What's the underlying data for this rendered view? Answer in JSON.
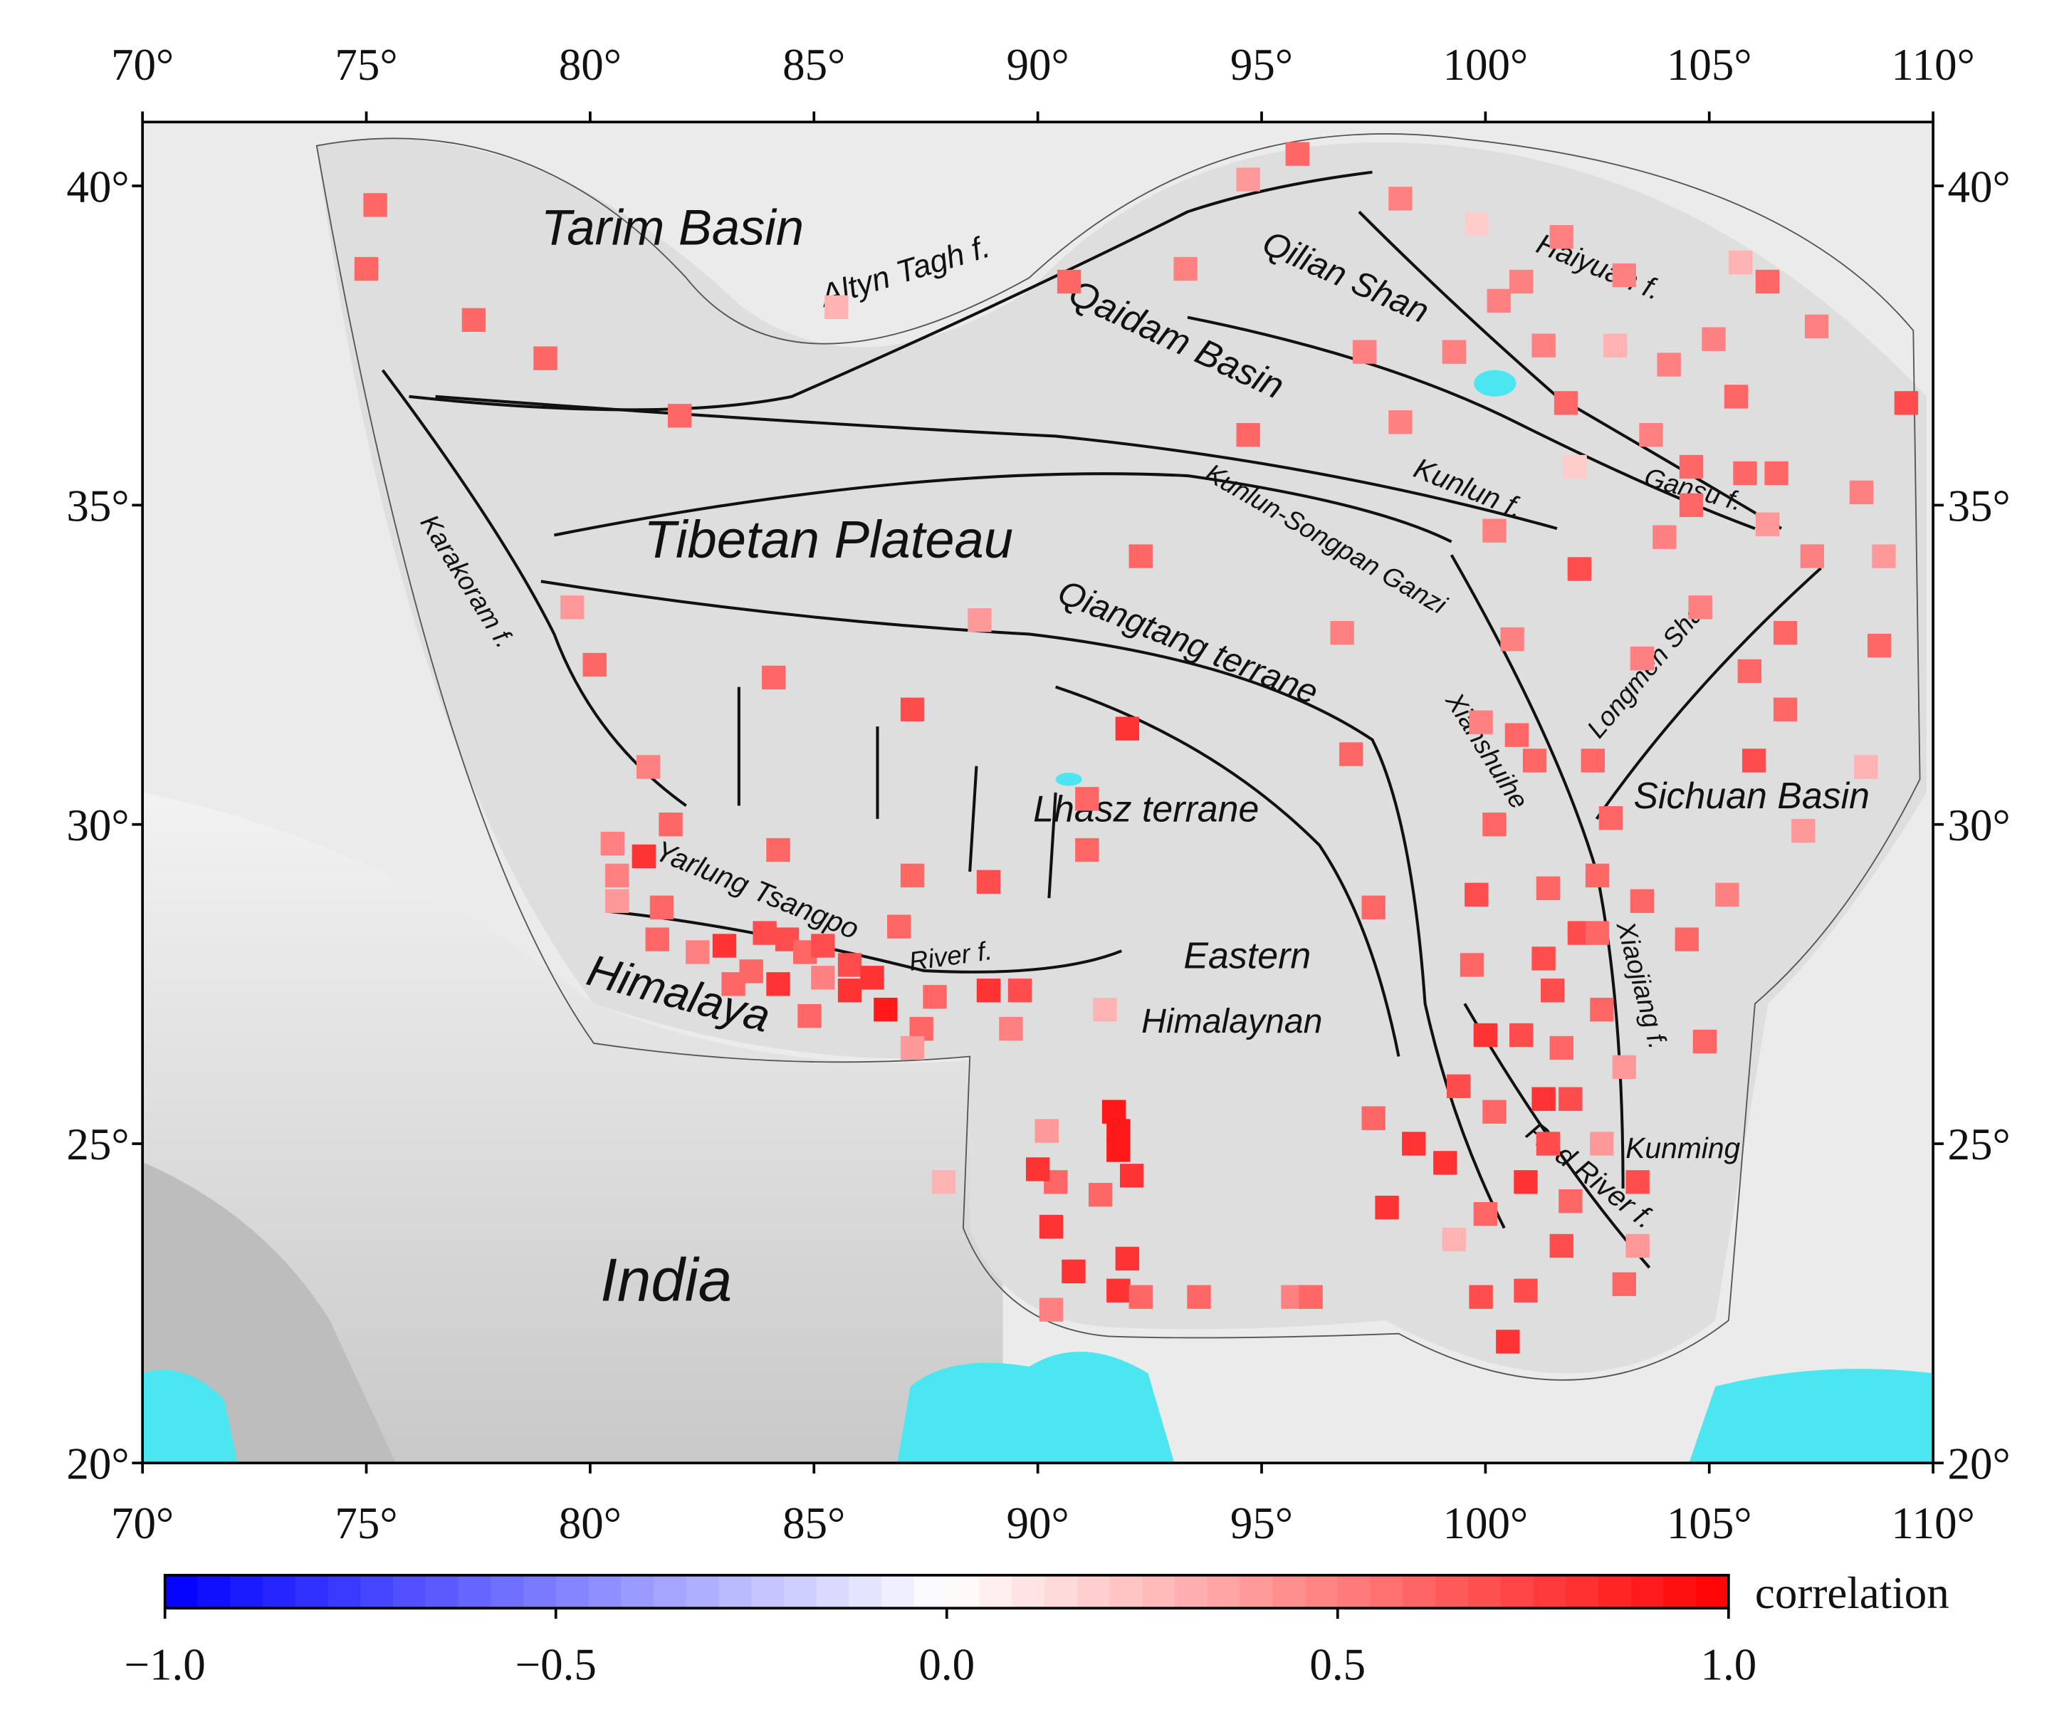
{
  "map": {
    "xlim": [
      70,
      110
    ],
    "ylim": [
      20,
      41
    ],
    "xticks": [
      {
        "value": 70,
        "label": "70°"
      },
      {
        "value": 75,
        "label": "75°"
      },
      {
        "value": 80,
        "label": "80°"
      },
      {
        "value": 85,
        "label": "85°"
      },
      {
        "value": 90,
        "label": "90°"
      },
      {
        "value": 95,
        "label": "95°"
      },
      {
        "value": 100,
        "label": "100°"
      },
      {
        "value": 105,
        "label": "105°"
      },
      {
        "value": 110,
        "label": "110°"
      }
    ],
    "yticks": [
      {
        "value": 20,
        "label": "20°"
      },
      {
        "value": 25,
        "label": "25°"
      },
      {
        "value": 30,
        "label": "30°"
      },
      {
        "value": 35,
        "label": "35°"
      },
      {
        "value": 40,
        "label": "40°"
      }
    ],
    "labels": [
      "Tarim Basin",
      "Altyn Tagh f.",
      "Qilian Shan",
      "Haiyuan f.",
      "Qaidam Basin",
      "Tibetan Plateau",
      "Kunlun f.",
      "Gansu f.",
      "Karakoram f.",
      "Kunlun-Songpan Ganzi",
      "Qiangtang terrane",
      "Xianshuihe",
      "Longmen Shan",
      "Sichuan Basin",
      "Lhasz terrane",
      "Yarlung Tsangpo",
      "River f.",
      "Eastern",
      "Himalaynan",
      "Himalaya",
      "Xiaojiang f.",
      "Kunming",
      "Red River f.",
      "India"
    ],
    "stations": [
      {
        "lon": 95.8,
        "lat": 40.5,
        "correlation": 0.6
      },
      {
        "lon": 94.7,
        "lat": 40.1,
        "correlation": 0.4
      },
      {
        "lon": 98.1,
        "lat": 39.8,
        "correlation": 0.5
      },
      {
        "lon": 99.8,
        "lat": 39.4,
        "correlation": 0.2
      },
      {
        "lon": 101.7,
        "lat": 39.2,
        "correlation": 0.5
      },
      {
        "lon": 103.1,
        "lat": 38.6,
        "correlation": 0.5
      },
      {
        "lon": 105.7,
        "lat": 38.8,
        "correlation": 0.3
      },
      {
        "lon": 106.3,
        "lat": 38.5,
        "correlation": 0.6
      },
      {
        "lon": 107.4,
        "lat": 37.8,
        "correlation": 0.5
      },
      {
        "lon": 100.8,
        "lat": 38.5,
        "correlation": 0.5
      },
      {
        "lon": 100.3,
        "lat": 38.2,
        "correlation": 0.5
      },
      {
        "lon": 99.3,
        "lat": 37.4,
        "correlation": 0.5
      },
      {
        "lon": 101.3,
        "lat": 37.5,
        "correlation": 0.5
      },
      {
        "lon": 102.9,
        "lat": 37.5,
        "correlation": 0.3
      },
      {
        "lon": 104.1,
        "lat": 37.2,
        "correlation": 0.5
      },
      {
        "lon": 105.1,
        "lat": 37.6,
        "correlation": 0.5
      },
      {
        "lon": 101.8,
        "lat": 36.6,
        "correlation": 0.6
      },
      {
        "lon": 103.7,
        "lat": 36.1,
        "correlation": 0.5
      },
      {
        "lon": 105.6,
        "lat": 36.7,
        "correlation": 0.6
      },
      {
        "lon": 109.4,
        "lat": 36.6,
        "correlation": 0.7
      },
      {
        "lon": 104.6,
        "lat": 35.6,
        "correlation": 0.6
      },
      {
        "lon": 105.8,
        "lat": 35.5,
        "correlation": 0.6
      },
      {
        "lon": 106.5,
        "lat": 35.5,
        "correlation": 0.6
      },
      {
        "lon": 102.0,
        "lat": 35.6,
        "correlation": 0.2
      },
      {
        "lon": 104.6,
        "lat": 35.0,
        "correlation": 0.6
      },
      {
        "lon": 108.4,
        "lat": 35.2,
        "correlation": 0.5
      },
      {
        "lon": 106.3,
        "lat": 34.7,
        "correlation": 0.4
      },
      {
        "lon": 104.0,
        "lat": 34.5,
        "correlation": 0.5
      },
      {
        "lon": 107.3,
        "lat": 34.2,
        "correlation": 0.5
      },
      {
        "lon": 108.9,
        "lat": 34.2,
        "correlation": 0.4
      },
      {
        "lon": 100.2,
        "lat": 34.6,
        "correlation": 0.5
      },
      {
        "lon": 102.1,
        "lat": 34.0,
        "correlation": 0.7
      },
      {
        "lon": 104.8,
        "lat": 33.4,
        "correlation": 0.5
      },
      {
        "lon": 100.6,
        "lat": 32.9,
        "correlation": 0.5
      },
      {
        "lon": 103.5,
        "lat": 32.6,
        "correlation": 0.5
      },
      {
        "lon": 106.7,
        "lat": 33.0,
        "correlation": 0.6
      },
      {
        "lon": 108.8,
        "lat": 32.8,
        "correlation": 0.6
      },
      {
        "lon": 105.9,
        "lat": 32.4,
        "correlation": 0.6
      },
      {
        "lon": 106.7,
        "lat": 31.8,
        "correlation": 0.6
      },
      {
        "lon": 106.0,
        "lat": 31.0,
        "correlation": 0.7
      },
      {
        "lon": 108.5,
        "lat": 30.9,
        "correlation": 0.3
      },
      {
        "lon": 107.1,
        "lat": 29.9,
        "correlation": 0.4
      },
      {
        "lon": 100.7,
        "lat": 31.4,
        "correlation": 0.6
      },
      {
        "lon": 101.1,
        "lat": 31.0,
        "correlation": 0.6
      },
      {
        "lon": 102.4,
        "lat": 31.0,
        "correlation": 0.6
      },
      {
        "lon": 102.8,
        "lat": 30.1,
        "correlation": 0.6
      },
      {
        "lon": 100.2,
        "lat": 30.0,
        "correlation": 0.6
      },
      {
        "lon": 99.9,
        "lat": 31.6,
        "correlation": 0.5
      },
      {
        "lon": 97.0,
        "lat": 31.1,
        "correlation": 0.6
      },
      {
        "lon": 96.8,
        "lat": 33.0,
        "correlation": 0.5
      },
      {
        "lon": 94.7,
        "lat": 36.1,
        "correlation": 0.6
      },
      {
        "lon": 98.1,
        "lat": 36.3,
        "correlation": 0.5
      },
      {
        "lon": 97.3,
        "lat": 37.4,
        "correlation": 0.5
      },
      {
        "lon": 93.3,
        "lat": 38.7,
        "correlation": 0.5
      },
      {
        "lon": 90.7,
        "lat": 38.5,
        "correlation": 0.6
      },
      {
        "lon": 85.5,
        "lat": 38.1,
        "correlation": 0.3
      },
      {
        "lon": 92.3,
        "lat": 34.2,
        "correlation": 0.6
      },
      {
        "lon": 88.7,
        "lat": 33.2,
        "correlation": 0.4
      },
      {
        "lon": 92.0,
        "lat": 31.5,
        "correlation": 0.8
      },
      {
        "lon": 87.2,
        "lat": 31.8,
        "correlation": 0.7
      },
      {
        "lon": 84.1,
        "lat": 32.3,
        "correlation": 0.6
      },
      {
        "lon": 91.1,
        "lat": 30.4,
        "correlation": 0.6
      },
      {
        "lon": 91.1,
        "lat": 29.6,
        "correlation": 0.6
      },
      {
        "lon": 88.9,
        "lat": 29.1,
        "correlation": 0.7
      },
      {
        "lon": 87.2,
        "lat": 29.2,
        "correlation": 0.6
      },
      {
        "lon": 84.2,
        "lat": 29.6,
        "correlation": 0.6
      },
      {
        "lon": 81.8,
        "lat": 30.0,
        "correlation": 0.6
      },
      {
        "lon": 81.3,
        "lat": 30.9,
        "correlation": 0.5
      },
      {
        "lon": 80.1,
        "lat": 32.5,
        "correlation": 0.6
      },
      {
        "lon": 79.6,
        "lat": 33.4,
        "correlation": 0.4
      },
      {
        "lon": 82.0,
        "lat": 36.4,
        "correlation": 0.6
      },
      {
        "lon": 79.0,
        "lat": 37.3,
        "correlation": 0.6
      },
      {
        "lon": 77.4,
        "lat": 37.9,
        "correlation": 0.6
      },
      {
        "lon": 75.0,
        "lat": 38.7,
        "correlation": 0.6
      },
      {
        "lon": 75.2,
        "lat": 39.7,
        "correlation": 0.6
      },
      {
        "lon": 80.5,
        "lat": 29.7,
        "correlation": 0.5
      },
      {
        "lon": 81.2,
        "lat": 29.5,
        "correlation": 0.8
      },
      {
        "lon": 80.6,
        "lat": 29.2,
        "correlation": 0.5
      },
      {
        "lon": 80.6,
        "lat": 28.8,
        "correlation": 0.4
      },
      {
        "lon": 81.6,
        "lat": 28.7,
        "correlation": 0.6
      },
      {
        "lon": 81.5,
        "lat": 28.2,
        "correlation": 0.6
      },
      {
        "lon": 82.4,
        "lat": 28.0,
        "correlation": 0.5
      },
      {
        "lon": 83.0,
        "lat": 28.1,
        "correlation": 0.8
      },
      {
        "lon": 83.9,
        "lat": 28.3,
        "correlation": 0.7
      },
      {
        "lon": 84.4,
        "lat": 28.2,
        "correlation": 0.7
      },
      {
        "lon": 84.8,
        "lat": 28.0,
        "correlation": 0.6
      },
      {
        "lon": 85.2,
        "lat": 28.1,
        "correlation": 0.7
      },
      {
        "lon": 83.6,
        "lat": 27.7,
        "correlation": 0.6
      },
      {
        "lon": 84.2,
        "lat": 27.5,
        "correlation": 0.8
      },
      {
        "lon": 85.2,
        "lat": 27.6,
        "correlation": 0.5
      },
      {
        "lon": 85.8,
        "lat": 27.8,
        "correlation": 0.7
      },
      {
        "lon": 86.3,
        "lat": 27.6,
        "correlation": 0.8
      },
      {
        "lon": 85.8,
        "lat": 27.4,
        "correlation": 0.8
      },
      {
        "lon": 86.6,
        "lat": 27.1,
        "correlation": 0.9
      },
      {
        "lon": 84.9,
        "lat": 27.0,
        "correlation": 0.6
      },
      {
        "lon": 86.9,
        "lat": 28.4,
        "correlation": 0.6
      },
      {
        "lon": 87.4,
        "lat": 26.8,
        "correlation": 0.6
      },
      {
        "lon": 87.7,
        "lat": 27.3,
        "correlation": 0.6
      },
      {
        "lon": 88.9,
        "lat": 27.4,
        "correlation": 0.8
      },
      {
        "lon": 89.6,
        "lat": 27.4,
        "correlation": 0.7
      },
      {
        "lon": 89.4,
        "lat": 26.8,
        "correlation": 0.5
      },
      {
        "lon": 87.2,
        "lat": 26.5,
        "correlation": 0.4
      },
      {
        "lon": 91.5,
        "lat": 27.1,
        "correlation": 0.3
      },
      {
        "lon": 83.2,
        "lat": 27.5,
        "correlation": 0.6
      },
      {
        "lon": 91.7,
        "lat": 25.5,
        "correlation": 0.9
      },
      {
        "lon": 91.8,
        "lat": 25.2,
        "correlation": 0.9
      },
      {
        "lon": 91.8,
        "lat": 24.9,
        "correlation": 0.9
      },
      {
        "lon": 92.1,
        "lat": 24.5,
        "correlation": 0.8
      },
      {
        "lon": 91.4,
        "lat": 24.2,
        "correlation": 0.6
      },
      {
        "lon": 90.4,
        "lat": 24.4,
        "correlation": 0.6
      },
      {
        "lon": 90.0,
        "lat": 24.6,
        "correlation": 0.8
      },
      {
        "lon": 90.2,
        "lat": 25.2,
        "correlation": 0.4
      },
      {
        "lon": 87.9,
        "lat": 24.4,
        "correlation": 0.3
      },
      {
        "lon": 90.3,
        "lat": 23.7,
        "correlation": 0.8
      },
      {
        "lon": 90.8,
        "lat": 23.0,
        "correlation": 0.8
      },
      {
        "lon": 90.3,
        "lat": 22.4,
        "correlation": 0.5
      },
      {
        "lon": 92.0,
        "lat": 23.2,
        "correlation": 0.8
      },
      {
        "lon": 91.8,
        "lat": 22.7,
        "correlation": 0.8
      },
      {
        "lon": 92.3,
        "lat": 22.6,
        "correlation": 0.6
      },
      {
        "lon": 93.6,
        "lat": 22.6,
        "correlation": 0.6
      },
      {
        "lon": 95.7,
        "lat": 22.6,
        "correlation": 0.5
      },
      {
        "lon": 96.1,
        "lat": 22.6,
        "correlation": 0.6
      },
      {
        "lon": 97.5,
        "lat": 25.4,
        "correlation": 0.6
      },
      {
        "lon": 98.4,
        "lat": 25.0,
        "correlation": 0.8
      },
      {
        "lon": 99.1,
        "lat": 24.7,
        "correlation": 0.8
      },
      {
        "lon": 97.8,
        "lat": 24.0,
        "correlation": 0.8
      },
      {
        "lon": 99.3,
        "lat": 23.5,
        "correlation": 0.3
      },
      {
        "lon": 100.0,
        "lat": 23.9,
        "correlation": 0.6
      },
      {
        "lon": 99.9,
        "lat": 22.6,
        "correlation": 0.7
      },
      {
        "lon": 100.5,
        "lat": 21.9,
        "correlation": 0.8
      },
      {
        "lon": 100.9,
        "lat": 22.7,
        "correlation": 0.7
      },
      {
        "lon": 100.9,
        "lat": 24.4,
        "correlation": 0.8
      },
      {
        "lon": 101.7,
        "lat": 23.4,
        "correlation": 0.7
      },
      {
        "lon": 101.9,
        "lat": 24.1,
        "correlation": 0.6
      },
      {
        "lon": 103.1,
        "lat": 22.8,
        "correlation": 0.6
      },
      {
        "lon": 103.4,
        "lat": 23.4,
        "correlation": 0.4
      },
      {
        "lon": 103.4,
        "lat": 24.4,
        "correlation": 0.7
      },
      {
        "lon": 102.6,
        "lat": 25.0,
        "correlation": 0.4
      },
      {
        "lon": 101.4,
        "lat": 25.0,
        "correlation": 0.7
      },
      {
        "lon": 99.4,
        "lat": 25.9,
        "correlation": 0.7
      },
      {
        "lon": 100.2,
        "lat": 25.5,
        "correlation": 0.6
      },
      {
        "lon": 100.0,
        "lat": 26.7,
        "correlation": 0.8
      },
      {
        "lon": 100.8,
        "lat": 26.7,
        "correlation": 0.7
      },
      {
        "lon": 101.3,
        "lat": 25.7,
        "correlation": 0.8
      },
      {
        "lon": 101.9,
        "lat": 25.7,
        "correlation": 0.7
      },
      {
        "lon": 101.7,
        "lat": 26.5,
        "correlation": 0.6
      },
      {
        "lon": 101.5,
        "lat": 27.4,
        "correlation": 0.7
      },
      {
        "lon": 101.3,
        "lat": 27.9,
        "correlation": 0.7
      },
      {
        "lon": 99.7,
        "lat": 27.8,
        "correlation": 0.6
      },
      {
        "lon": 99.8,
        "lat": 28.9,
        "correlation": 0.7
      },
      {
        "lon": 97.5,
        "lat": 28.7,
        "correlation": 0.6
      },
      {
        "lon": 101.4,
        "lat": 29.0,
        "correlation": 0.6
      },
      {
        "lon": 102.5,
        "lat": 29.2,
        "correlation": 0.6
      },
      {
        "lon": 102.1,
        "lat": 28.3,
        "correlation": 0.7
      },
      {
        "lon": 102.5,
        "lat": 28.3,
        "correlation": 0.6
      },
      {
        "lon": 103.5,
        "lat": 28.8,
        "correlation": 0.6
      },
      {
        "lon": 102.6,
        "lat": 27.1,
        "correlation": 0.6
      },
      {
        "lon": 103.1,
        "lat": 26.2,
        "correlation": 0.4
      },
      {
        "lon": 104.9,
        "lat": 26.6,
        "correlation": 0.6
      },
      {
        "lon": 104.5,
        "lat": 28.2,
        "correlation": 0.6
      },
      {
        "lon": 105.4,
        "lat": 28.9,
        "correlation": 0.5
      }
    ],
    "colorbar": {
      "label": "correlation",
      "clim": [
        -1,
        1
      ],
      "ticks": [
        {
          "value": -1,
          "label": "−1.0"
        },
        {
          "value": -0.5,
          "label": "−0.5"
        },
        {
          "value": 0,
          "label": "0.0"
        },
        {
          "value": 0.5,
          "label": "0.5"
        },
        {
          "value": 1,
          "label": "1.0"
        }
      ]
    }
  }
}
